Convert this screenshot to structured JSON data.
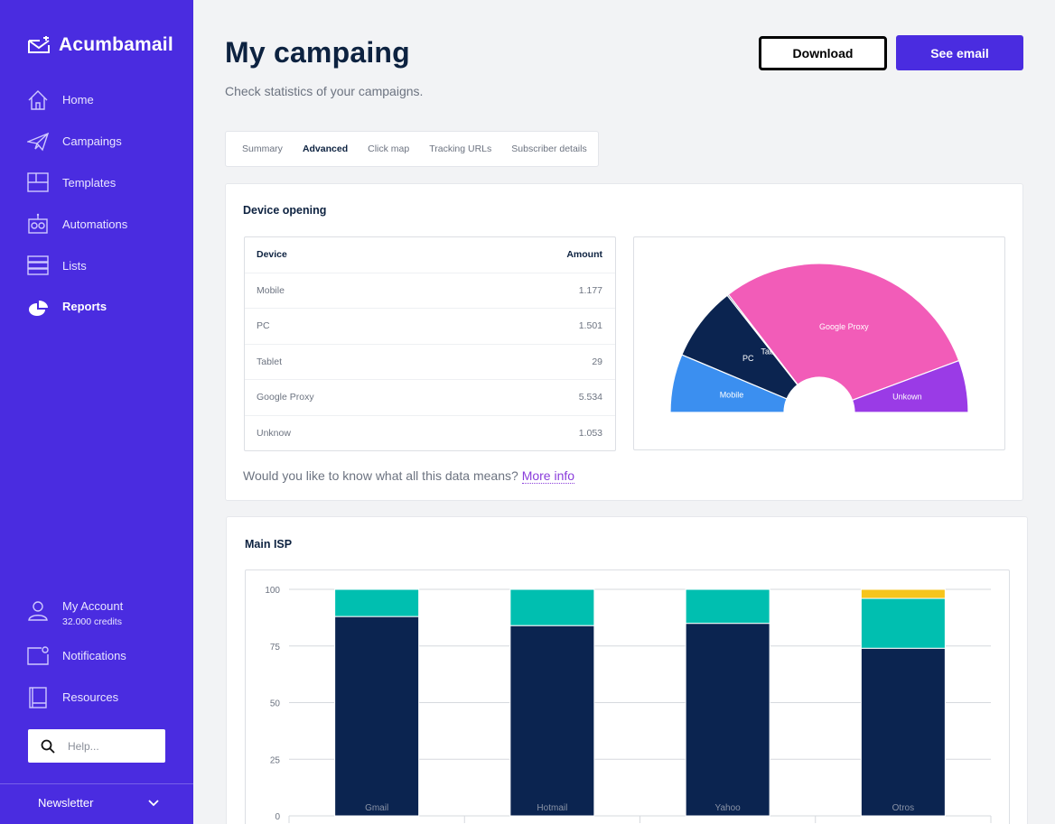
{
  "app": {
    "name": "Acumbamail"
  },
  "sidebar": {
    "items": [
      {
        "label": "Home",
        "icon": "home-icon"
      },
      {
        "label": "Campaings",
        "icon": "paper-plane-icon"
      },
      {
        "label": "Templates",
        "icon": "templates-icon"
      },
      {
        "label": "Automations",
        "icon": "robot-icon"
      },
      {
        "label": "Lists",
        "icon": "lists-icon"
      },
      {
        "label": "Reports",
        "icon": "pie-chart-icon",
        "active": true
      }
    ],
    "account": {
      "label": "My Account",
      "credits": "32.000 credits"
    },
    "notifications": "Notifications",
    "resources": "Resources",
    "help_placeholder": "Help...",
    "newsletter": "Newsletter"
  },
  "header": {
    "title": "My campaing",
    "subtitle": "Check statistics of your campaigns.",
    "download_label": "Download",
    "see_email_label": "See email"
  },
  "tabs": [
    {
      "label": "Summary"
    },
    {
      "label": "Advanced",
      "active": true
    },
    {
      "label": "Click map"
    },
    {
      "label": "Tracking URLs"
    },
    {
      "label": "Subscriber details"
    }
  ],
  "device_opening": {
    "title": "Device opening",
    "columns": [
      "Device",
      "Amount"
    ],
    "rows": [
      {
        "device": "Mobile",
        "amount": "1.177"
      },
      {
        "device": "PC",
        "amount": "1.501"
      },
      {
        "device": "Tablet",
        "amount": "29"
      },
      {
        "device": "Google Proxy",
        "amount": "5.534"
      },
      {
        "device": "Unknow",
        "amount": "1.053"
      }
    ],
    "info_text": "Would you like to know what all this data means?",
    "info_link": "More info"
  },
  "chart_data": [
    {
      "type": "pie",
      "subtype": "semi-donut",
      "labels": [
        "Mobile",
        "PC",
        "Tablet",
        "Google Proxy",
        "Unkown"
      ],
      "values": [
        1177,
        1501,
        29,
        5534,
        1053
      ],
      "colors": [
        "#3b8ff0",
        "#0b2450",
        "#0b2450",
        "#f25cb8",
        "#9a3be6"
      ]
    },
    {
      "type": "bar",
      "subtype": "stacked",
      "title": "Main ISP",
      "categories": [
        "Gmail",
        "Hotmail",
        "Yahoo",
        "Otros"
      ],
      "series": [
        {
          "values": [
            88,
            84,
            85,
            74
          ],
          "color": "#0b2450"
        },
        {
          "values": [
            12,
            16,
            15,
            22
          ],
          "color": "#00bfb0"
        },
        {
          "values": [
            0,
            0,
            0,
            4
          ],
          "color": "#f7c51c"
        }
      ],
      "yticks": [
        0,
        25,
        50,
        75,
        100
      ],
      "ylim": [
        0,
        100
      ]
    }
  ]
}
